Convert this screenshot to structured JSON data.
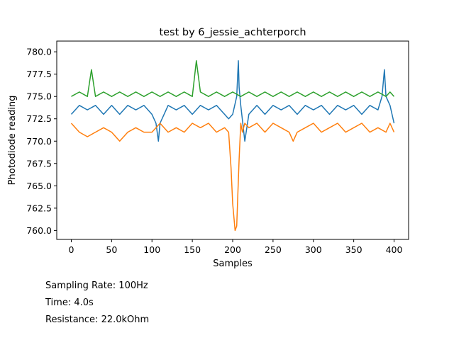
{
  "chart_data": {
    "type": "line",
    "title": "test by 6_jessie_achterporch",
    "xlabel": "Samples",
    "ylabel": "Photodiode reading",
    "xlim": [
      -18,
      418
    ],
    "ylim": [
      759,
      781.2
    ],
    "xticks": [
      0,
      50,
      100,
      150,
      200,
      250,
      300,
      350,
      400
    ],
    "yticks": [
      760.0,
      762.5,
      765.0,
      767.5,
      770.0,
      772.5,
      775.0,
      777.5,
      780.0
    ],
    "grid": false,
    "legend": "none",
    "series": [
      {
        "color": "#1f77b4",
        "x": [
          0,
          10,
          20,
          30,
          40,
          50,
          60,
          70,
          80,
          90,
          100,
          105,
          108,
          110,
          115,
          120,
          130,
          140,
          150,
          160,
          170,
          180,
          190,
          195,
          200,
          205,
          207,
          208,
          210,
          215,
          220,
          230,
          240,
          250,
          260,
          270,
          280,
          290,
          300,
          310,
          320,
          330,
          340,
          350,
          360,
          370,
          380,
          385,
          388,
          390,
          395,
          400
        ],
        "values": [
          773,
          774,
          773.5,
          774,
          773,
          774,
          773,
          774,
          773.5,
          774,
          773,
          772,
          770,
          772,
          773,
          774,
          773.5,
          774,
          773,
          774,
          773.5,
          774,
          773,
          772.5,
          773,
          775,
          779,
          776,
          774,
          770,
          773,
          774,
          773,
          774,
          773.5,
          774,
          773,
          774,
          773.5,
          774,
          773,
          774,
          773.5,
          774,
          773,
          774,
          773.5,
          775,
          778,
          775,
          774,
          772
        ]
      },
      {
        "color": "#ff7f0e",
        "x": [
          0,
          10,
          20,
          30,
          40,
          50,
          60,
          70,
          80,
          90,
          100,
          110,
          120,
          130,
          140,
          150,
          160,
          170,
          180,
          190,
          195,
          198,
          200,
          202,
          203,
          205,
          206,
          208,
          210,
          212,
          215,
          220,
          230,
          240,
          250,
          260,
          270,
          275,
          280,
          290,
          300,
          310,
          320,
          330,
          340,
          350,
          360,
          370,
          380,
          390,
          395,
          400
        ],
        "values": [
          772,
          771,
          770.5,
          771,
          771.5,
          771,
          770,
          771,
          771.5,
          771,
          771,
          772,
          771,
          771.5,
          771,
          772,
          771.5,
          772,
          771,
          771.5,
          771,
          767,
          763,
          761,
          760,
          760.5,
          763,
          768,
          772,
          771,
          772,
          771.5,
          772,
          771,
          772,
          771.5,
          771,
          770,
          771,
          771.5,
          772,
          771,
          771.5,
          772,
          771,
          771.5,
          772,
          771,
          771.5,
          771,
          772,
          771
        ]
      },
      {
        "color": "#2ca02c",
        "x": [
          0,
          10,
          20,
          25,
          30,
          40,
          50,
          60,
          70,
          80,
          90,
          100,
          110,
          120,
          130,
          140,
          150,
          155,
          160,
          170,
          180,
          190,
          200,
          210,
          220,
          230,
          240,
          250,
          260,
          270,
          280,
          290,
          300,
          310,
          320,
          330,
          340,
          350,
          360,
          370,
          380,
          390,
          395,
          400
        ],
        "values": [
          775,
          775.5,
          775,
          778,
          775,
          775.5,
          775,
          775.5,
          775,
          775.5,
          775,
          775.5,
          775,
          775.5,
          775,
          775.5,
          775,
          779,
          775.5,
          775,
          775.5,
          775,
          775.5,
          775,
          775.5,
          775,
          775.5,
          775,
          775.5,
          775,
          775.5,
          775,
          775.5,
          775,
          775.5,
          775,
          775.5,
          775,
          775.5,
          775,
          775.5,
          775,
          775.5,
          775
        ]
      }
    ]
  },
  "info": {
    "sampling_rate": "Sampling Rate: 100Hz",
    "time": "Time: 4.0s",
    "resistance": "Resistance: 22.0kOhm"
  }
}
